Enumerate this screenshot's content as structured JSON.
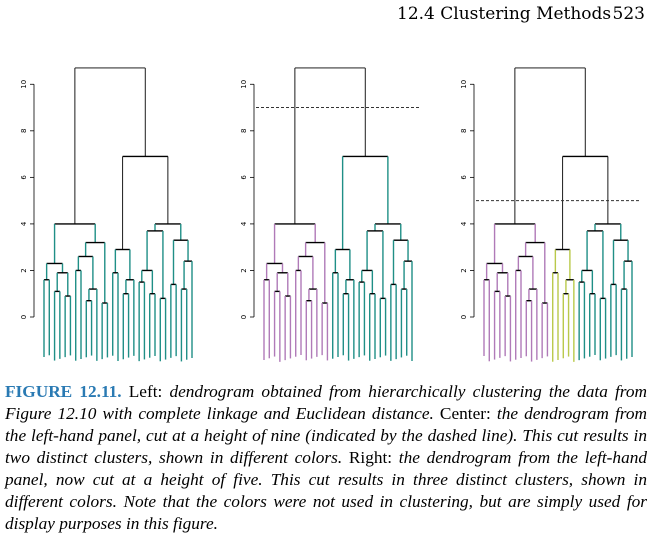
{
  "header": {
    "section": "12.4 Clustering Methods",
    "page_number": "523"
  },
  "figure": {
    "yticks": [
      0,
      2,
      4,
      6,
      8,
      10
    ],
    "panels": [
      {
        "name": "left",
        "cut_height": null,
        "clusters": 1,
        "colors": [
          "#1f8f86"
        ]
      },
      {
        "name": "center",
        "cut_height": 9,
        "clusters": 2,
        "colors": [
          "#b07ab8",
          "#1f8f86"
        ]
      },
      {
        "name": "right",
        "cut_height": 5,
        "clusters": 3,
        "colors": [
          "#b07ab8",
          "#b9c94a",
          "#1f8f86"
        ]
      }
    ]
  },
  "caption": {
    "label": "FIGURE 12.11.",
    "t1": " Left: ",
    "i1": "dendrogram obtained from hierarchically clustering the data from Figure 12.10 with complete linkage and Euclidean distance.",
    "t2": " Center: ",
    "i2": "the dendrogram from the left-hand panel, cut at a height of nine (indicated by the dashed line). This cut results in two distinct clusters, shown in different colors.",
    "t3": " Right: ",
    "i3": "the dendrogram from the left-hand panel, now cut at a height of five. This cut results in three distinct clusters, shown in different colors. Note that the colors were not used in clustering, but are simply used for display purposes in this figure."
  }
}
